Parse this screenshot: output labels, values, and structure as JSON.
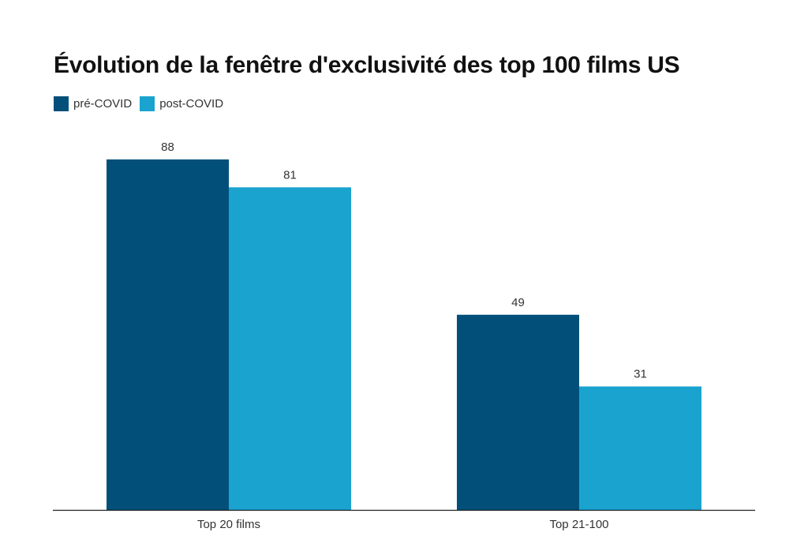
{
  "chart_data": {
    "type": "bar",
    "title": "Évolution de la fenêtre d'exclusivité des top 100 films US",
    "xlabel": "",
    "ylabel": "",
    "categories": [
      "Top 20 films",
      "Top 21-100"
    ],
    "series": [
      {
        "name": "pré-COVID",
        "color": "#02507a",
        "values": [
          88,
          49
        ]
      },
      {
        "name": "post-COVID",
        "color": "#1aa3cf",
        "values": [
          81,
          31
        ]
      }
    ],
    "ylim": [
      0,
      100
    ],
    "grid": false,
    "legend_position": "top-left",
    "data_labels": true
  }
}
